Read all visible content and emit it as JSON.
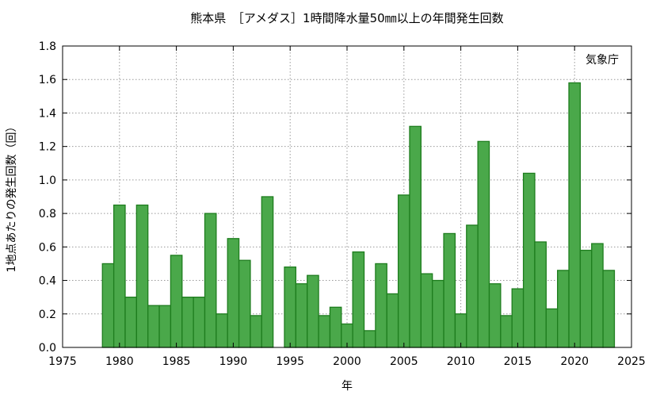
{
  "chart_data": {
    "type": "bar",
    "title": "熊本県　［アメダス］1時間降水量50㎜以上の年間発生回数",
    "xlabel": "年",
    "ylabel": "1地点あたりの発生回数（回）",
    "annotation": "気象庁",
    "xlim": [
      1975,
      2025
    ],
    "ylim": [
      0,
      1.8
    ],
    "x_ticks": [
      "1975",
      "1980",
      "1985",
      "1990",
      "1995",
      "2000",
      "2005",
      "2010",
      "2015",
      "2020",
      "2025"
    ],
    "y_ticks": [
      "0.0",
      "0.2",
      "0.4",
      "0.6",
      "0.8",
      "1.0",
      "1.2",
      "1.4",
      "1.6",
      "1.8"
    ],
    "grid": true,
    "colors": {
      "bar_fill": "#4aa84a",
      "bar_stroke": "#1e7d1e"
    },
    "x": [
      1979,
      1980,
      1981,
      1982,
      1983,
      1984,
      1985,
      1986,
      1987,
      1988,
      1989,
      1990,
      1991,
      1992,
      1993,
      1994,
      1995,
      1996,
      1997,
      1998,
      1999,
      2000,
      2001,
      2002,
      2003,
      2004,
      2005,
      2006,
      2007,
      2008,
      2009,
      2010,
      2011,
      2012,
      2013,
      2014,
      2015,
      2016,
      2017,
      2018,
      2019,
      2020,
      2021,
      2022,
      2023
    ],
    "values": [
      0.5,
      0.85,
      0.3,
      0.85,
      0.25,
      0.25,
      0.55,
      0.3,
      0.3,
      0.8,
      0.2,
      0.65,
      0.52,
      0.19,
      0.9,
      0,
      0.48,
      0.38,
      0.43,
      0.19,
      0.24,
      0.14,
      0.57,
      0.1,
      0.5,
      0.32,
      0.91,
      1.32,
      0.44,
      0.4,
      0.68,
      0.2,
      0.73,
      1.23,
      0.38,
      0.19,
      0.35,
      1.04,
      0.63,
      0.23,
      0.46,
      1.58,
      0.58,
      0.62,
      0.46
    ]
  }
}
